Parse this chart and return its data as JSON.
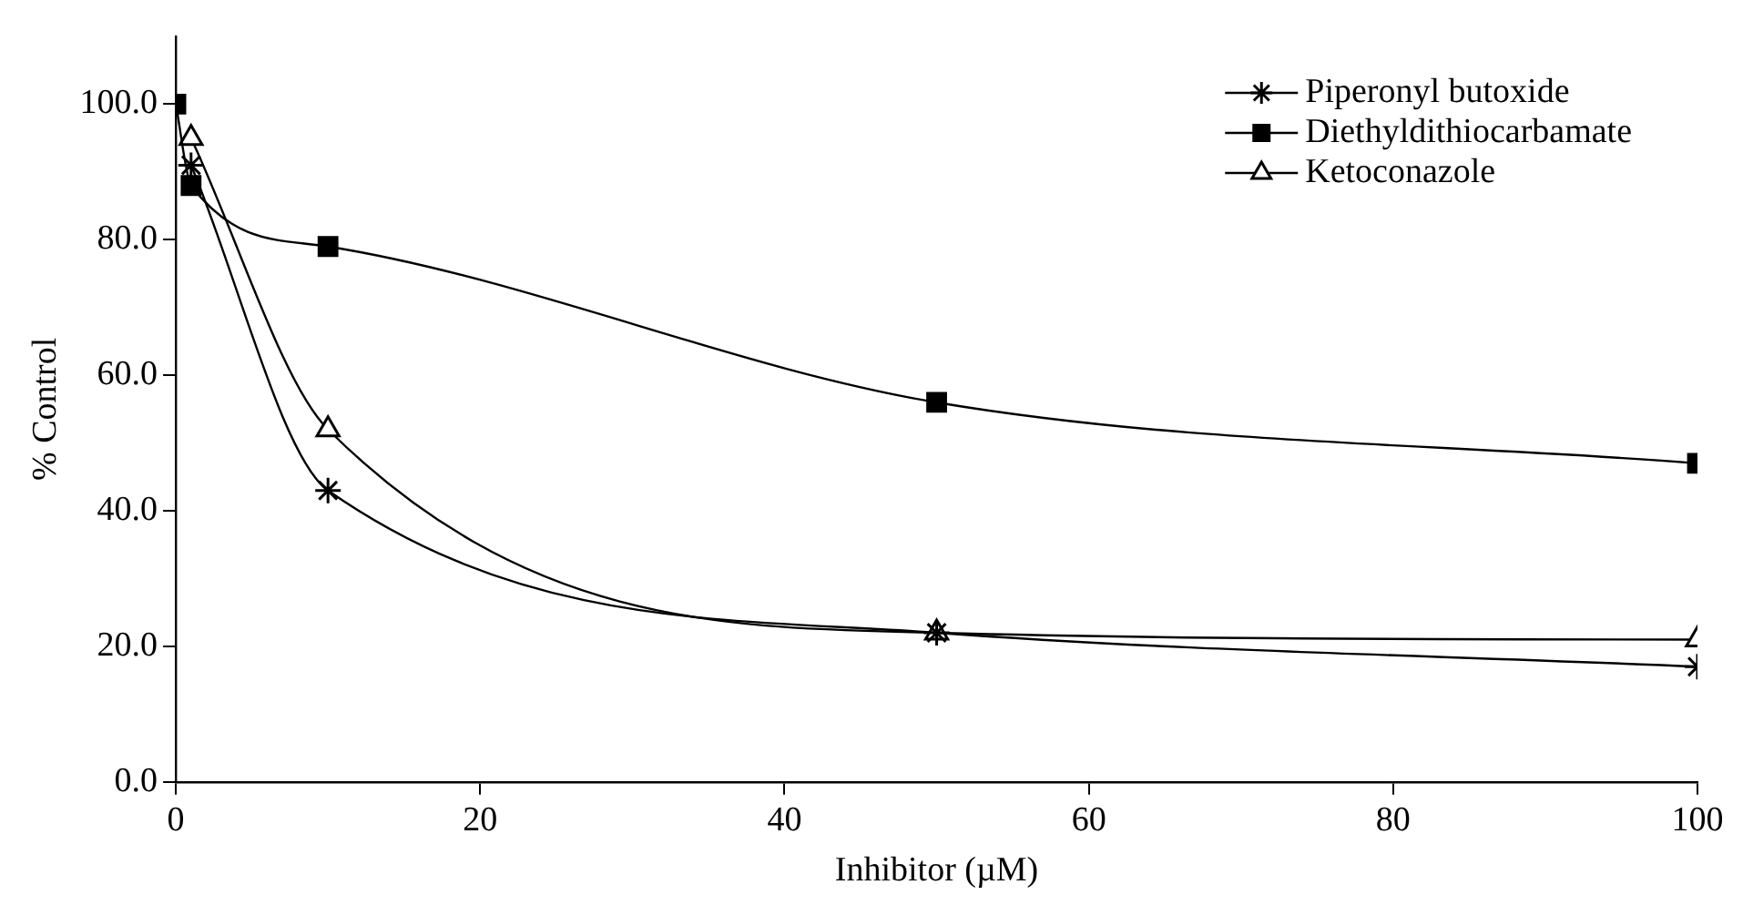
{
  "chart_data": {
    "type": "line",
    "xlabel": "Inhibitor (µM)",
    "ylabel": "% Control",
    "xlim": [
      0,
      100
    ],
    "xticks": [
      0,
      20,
      40,
      60,
      80,
      100
    ],
    "ylim": [
      0,
      110
    ],
    "yticks": [
      {
        "value": 0,
        "label": "0.0"
      },
      {
        "value": 20,
        "label": "20.0"
      },
      {
        "value": 40,
        "label": "40.0"
      },
      {
        "value": 60,
        "label": "60.0"
      },
      {
        "value": 80,
        "label": "80.0"
      },
      {
        "value": 100,
        "label": "100.0"
      }
    ],
    "grid": false,
    "legend": "top right",
    "line_style": "solid",
    "x": [
      0,
      1,
      10,
      50,
      100
    ],
    "series": [
      {
        "name": "Piperonyl butoxide",
        "color": "#000000",
        "marker": "cross",
        "values": [
          null,
          91,
          43,
          22,
          17
        ]
      },
      {
        "name": "Diethyldithiocarbamate",
        "color": "#000000",
        "marker": "square",
        "values": [
          100,
          88,
          79,
          56,
          47
        ]
      },
      {
        "name": "Ketoconazole",
        "color": "#000000",
        "marker": "triangle",
        "values": [
          null,
          95,
          52,
          22,
          21
        ]
      }
    ]
  }
}
